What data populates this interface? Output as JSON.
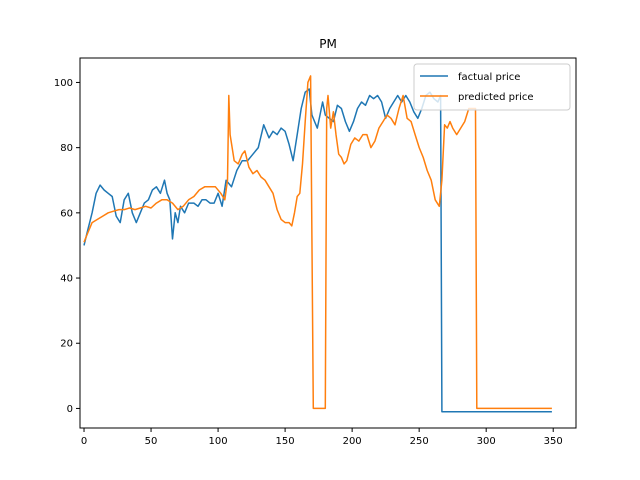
{
  "chart_data": {
    "type": "line",
    "title": "PM",
    "xlabel": "",
    "ylabel": "",
    "xlim": [
      -3,
      367
    ],
    "ylim": [
      -6,
      107.5
    ],
    "xticks": [
      0,
      50,
      100,
      150,
      200,
      250,
      300,
      350
    ],
    "yticks": [
      0,
      20,
      40,
      60,
      80,
      100
    ],
    "grid": false,
    "legend_position": "top-right",
    "series": [
      {
        "name": "factual price",
        "color": "#1f77b4",
        "points": [
          [
            0,
            50
          ],
          [
            3,
            55
          ],
          [
            6,
            60
          ],
          [
            9,
            66
          ],
          [
            12,
            68.5
          ],
          [
            15,
            67
          ],
          [
            18,
            66
          ],
          [
            21,
            65
          ],
          [
            24,
            59
          ],
          [
            27,
            57
          ],
          [
            30,
            64
          ],
          [
            33,
            66
          ],
          [
            36,
            60
          ],
          [
            39,
            57
          ],
          [
            42,
            60
          ],
          [
            45,
            63
          ],
          [
            48,
            64
          ],
          [
            51,
            67
          ],
          [
            54,
            68
          ],
          [
            57,
            66
          ],
          [
            60,
            70
          ],
          [
            62,
            66
          ],
          [
            64,
            64
          ],
          [
            66,
            52
          ],
          [
            68,
            60
          ],
          [
            70,
            57
          ],
          [
            72,
            62
          ],
          [
            75,
            60
          ],
          [
            78,
            63
          ],
          [
            82,
            63
          ],
          [
            85,
            62
          ],
          [
            88,
            64
          ],
          [
            91,
            64
          ],
          [
            94,
            63
          ],
          [
            97,
            63
          ],
          [
            100,
            66
          ],
          [
            103,
            62
          ],
          [
            106,
            70
          ],
          [
            110,
            68
          ],
          [
            114,
            73
          ],
          [
            118,
            76
          ],
          [
            122,
            76
          ],
          [
            126,
            78
          ],
          [
            130,
            80
          ],
          [
            134,
            87
          ],
          [
            138,
            83
          ],
          [
            141,
            85
          ],
          [
            144,
            84
          ],
          [
            147,
            86
          ],
          [
            150,
            85
          ],
          [
            153,
            81
          ],
          [
            156,
            76
          ],
          [
            159,
            84
          ],
          [
            162,
            92
          ],
          [
            165,
            97
          ],
          [
            168,
            98
          ],
          [
            170,
            90
          ],
          [
            172,
            88
          ],
          [
            174,
            86
          ],
          [
            176,
            90
          ],
          [
            178,
            94
          ],
          [
            180,
            90
          ],
          [
            183,
            89
          ],
          [
            186,
            88
          ],
          [
            189,
            93
          ],
          [
            192,
            92
          ],
          [
            195,
            88
          ],
          [
            198,
            85
          ],
          [
            201,
            88
          ],
          [
            204,
            92
          ],
          [
            207,
            94
          ],
          [
            210,
            93
          ],
          [
            213,
            96
          ],
          [
            216,
            95
          ],
          [
            219,
            96
          ],
          [
            222,
            94
          ],
          [
            225,
            89
          ],
          [
            228,
            92
          ],
          [
            231,
            94
          ],
          [
            234,
            96
          ],
          [
            237,
            94
          ],
          [
            240,
            96
          ],
          [
            243,
            94
          ],
          [
            246,
            91
          ],
          [
            249,
            89
          ],
          [
            252,
            92
          ],
          [
            255,
            96
          ],
          [
            258,
            97
          ],
          [
            261,
            95
          ],
          [
            264,
            94
          ],
          [
            266,
            96
          ],
          [
            267,
            -1
          ],
          [
            349,
            -1
          ]
        ]
      },
      {
        "name": "predicted price",
        "color": "#ff7f0e",
        "points": [
          [
            0,
            51
          ],
          [
            3,
            54
          ],
          [
            6,
            57
          ],
          [
            10,
            58
          ],
          [
            14,
            59
          ],
          [
            18,
            60
          ],
          [
            22,
            60.5
          ],
          [
            26,
            61
          ],
          [
            30,
            61
          ],
          [
            34,
            61.5
          ],
          [
            38,
            61
          ],
          [
            42,
            61.5
          ],
          [
            46,
            62
          ],
          [
            50,
            61.5
          ],
          [
            54,
            63
          ],
          [
            58,
            64
          ],
          [
            62,
            64
          ],
          [
            66,
            63
          ],
          [
            70,
            61
          ],
          [
            74,
            62
          ],
          [
            78,
            64
          ],
          [
            82,
            65
          ],
          [
            86,
            67
          ],
          [
            90,
            68
          ],
          [
            94,
            68
          ],
          [
            98,
            68
          ],
          [
            102,
            66
          ],
          [
            105,
            64
          ],
          [
            107,
            70
          ],
          [
            108,
            96
          ],
          [
            109,
            84
          ],
          [
            112,
            76
          ],
          [
            115,
            75
          ],
          [
            118,
            78
          ],
          [
            120,
            79
          ],
          [
            123,
            74
          ],
          [
            126,
            72
          ],
          [
            129,
            73
          ],
          [
            132,
            71
          ],
          [
            135,
            70
          ],
          [
            138,
            68
          ],
          [
            141,
            66
          ],
          [
            144,
            61
          ],
          [
            147,
            58
          ],
          [
            150,
            57
          ],
          [
            153,
            57
          ],
          [
            155,
            56
          ],
          [
            157,
            60
          ],
          [
            159,
            65
          ],
          [
            161,
            66
          ],
          [
            163,
            75
          ],
          [
            165,
            88
          ],
          [
            167,
            100
          ],
          [
            169,
            102
          ],
          [
            171,
            0
          ],
          [
            180,
            0
          ],
          [
            181,
            92
          ],
          [
            182,
            96
          ],
          [
            184,
            86
          ],
          [
            186,
            91
          ],
          [
            188,
            84
          ],
          [
            190,
            78
          ],
          [
            192,
            77
          ],
          [
            194,
            75
          ],
          [
            196,
            76
          ],
          [
            199,
            81
          ],
          [
            202,
            83
          ],
          [
            205,
            82
          ],
          [
            208,
            84
          ],
          [
            211,
            84
          ],
          [
            214,
            80
          ],
          [
            217,
            82
          ],
          [
            220,
            86
          ],
          [
            223,
            88
          ],
          [
            226,
            90
          ],
          [
            229,
            89
          ],
          [
            232,
            87
          ],
          [
            235,
            92
          ],
          [
            238,
            96
          ],
          [
            241,
            89
          ],
          [
            244,
            88
          ],
          [
            247,
            84
          ],
          [
            250,
            80
          ],
          [
            253,
            77
          ],
          [
            256,
            73
          ],
          [
            259,
            70
          ],
          [
            262,
            64
          ],
          [
            265,
            62
          ],
          [
            267,
            70
          ],
          [
            269,
            87
          ],
          [
            271,
            86
          ],
          [
            273,
            88
          ],
          [
            275,
            86
          ],
          [
            278,
            84
          ],
          [
            281,
            86
          ],
          [
            284,
            88
          ],
          [
            287,
            92
          ],
          [
            290,
            92
          ],
          [
            292,
            92
          ],
          [
            293,
            0
          ],
          [
            349,
            0
          ]
        ]
      }
    ]
  }
}
